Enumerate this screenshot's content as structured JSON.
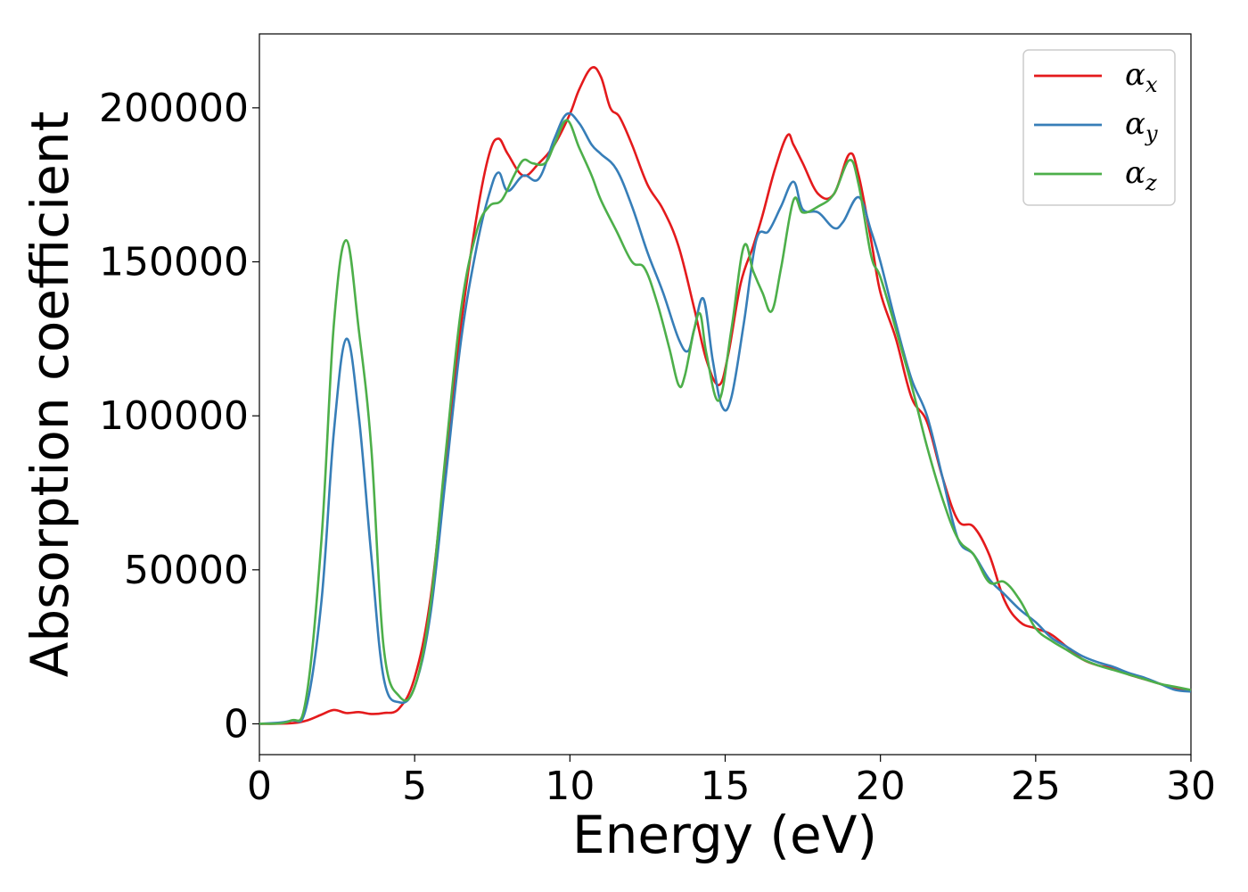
{
  "chart_data": {
    "type": "line",
    "xlabel": "Energy (eV)",
    "ylabel": "Absorption coefficient",
    "xlim": [
      0,
      30
    ],
    "ylim": [
      -10000,
      224000
    ],
    "xticks": [
      "0",
      "5",
      "10",
      "15",
      "20",
      "25",
      "30"
    ],
    "yticks": [
      "0",
      "50000",
      "100000",
      "150000",
      "200000"
    ],
    "grid": false,
    "legend_position": "top-right",
    "series": [
      {
        "name": "α",
        "subscript": "x",
        "color": "#e41a1c",
        "x": [
          0,
          1,
          1.5,
          2,
          2.4,
          2.8,
          3.2,
          3.6,
          4.0,
          4.5,
          5.0,
          5.5,
          6.0,
          6.5,
          7.0,
          7.4,
          7.7,
          8.0,
          8.5,
          9.0,
          9.5,
          10.0,
          10.3,
          10.7,
          11.0,
          11.3,
          11.6,
          12.0,
          12.5,
          13.0,
          13.5,
          14.0,
          14.4,
          14.8,
          15.1,
          15.5,
          15.9,
          16.2,
          16.6,
          17.0,
          17.2,
          17.5,
          18.0,
          18.5,
          19.0,
          19.3,
          19.7,
          20.0,
          20.5,
          21.0,
          21.5,
          22.0,
          22.5,
          23.0,
          23.5,
          24.0,
          24.5,
          25.0,
          25.5,
          26.0,
          26.5,
          27.0,
          27.5,
          28.0,
          28.5,
          29.0,
          29.5,
          30.0
        ],
        "y": [
          0,
          200,
          1000,
          3000,
          4500,
          3500,
          3800,
          3200,
          3500,
          5000,
          15000,
          40000,
          85000,
          130000,
          165000,
          185000,
          190000,
          185000,
          178000,
          182000,
          188000,
          198000,
          206000,
          213000,
          210000,
          200000,
          197000,
          188000,
          175000,
          167000,
          155000,
          135000,
          118000,
          110000,
          120000,
          143000,
          155000,
          165000,
          180000,
          191000,
          188000,
          182000,
          172000,
          172000,
          185000,
          178000,
          157000,
          140000,
          125000,
          106000,
          98000,
          80000,
          66000,
          64000,
          55000,
          40000,
          33000,
          31000,
          29000,
          25000,
          21000,
          19000,
          18000,
          16000,
          14500,
          13000,
          11500,
          11000
        ]
      },
      {
        "name": "α",
        "subscript": "y",
        "color": "#377eb8",
        "x": [
          0,
          1,
          1.5,
          2,
          2.4,
          2.8,
          3.2,
          3.6,
          4.0,
          4.5,
          5.0,
          5.5,
          6.0,
          6.5,
          7.0,
          7.4,
          7.7,
          8.0,
          8.5,
          9.0,
          9.5,
          9.9,
          10.3,
          10.7,
          11.0,
          11.5,
          12.0,
          12.5,
          13.0,
          13.5,
          13.8,
          14.0,
          14.3,
          14.6,
          14.9,
          15.2,
          15.6,
          16.0,
          16.4,
          16.8,
          17.2,
          17.5,
          18.0,
          18.5,
          18.8,
          19.3,
          19.7,
          20.0,
          20.5,
          21.0,
          21.5,
          22.0,
          22.5,
          23.0,
          23.5,
          24.0,
          24.5,
          25.0,
          25.5,
          26.0,
          26.5,
          27.0,
          27.5,
          28.0,
          28.5,
          29.0,
          29.5,
          30.0
        ],
        "y": [
          0,
          1000,
          5000,
          40000,
          95000,
          125000,
          100000,
          55000,
          15000,
          7000,
          12000,
          35000,
          80000,
          125000,
          155000,
          172000,
          179000,
          173000,
          178000,
          177000,
          190000,
          198000,
          195000,
          188000,
          185000,
          180000,
          168000,
          153000,
          140000,
          125000,
          121000,
          128000,
          138000,
          118000,
          103000,
          106000,
          130000,
          157000,
          160000,
          168000,
          176000,
          167000,
          166000,
          161000,
          163000,
          171000,
          160000,
          150000,
          130000,
          112000,
          100000,
          80000,
          60000,
          55000,
          47000,
          42000,
          37000,
          33000,
          28000,
          25000,
          22000,
          20000,
          18500,
          16500,
          15000,
          13000,
          11000,
          10500
        ]
      },
      {
        "name": "α",
        "subscript": "z",
        "color": "#4daf4a",
        "x": [
          0,
          1,
          1.5,
          2,
          2.4,
          2.8,
          3.2,
          3.6,
          4.0,
          4.5,
          5.0,
          5.5,
          6.0,
          6.5,
          7.0,
          7.4,
          7.8,
          8.2,
          8.5,
          8.8,
          9.2,
          9.5,
          9.9,
          10.3,
          10.7,
          11.0,
          11.5,
          12.0,
          12.4,
          12.8,
          13.2,
          13.5,
          13.7,
          14.0,
          14.2,
          14.4,
          14.8,
          15.2,
          15.6,
          15.9,
          16.2,
          16.5,
          16.8,
          17.2,
          17.5,
          18.0,
          18.5,
          19.0,
          19.3,
          19.7,
          20.0,
          20.5,
          21.0,
          21.5,
          22.0,
          22.5,
          23.0,
          23.5,
          24.0,
          24.5,
          25.0,
          25.5,
          26.0,
          26.5,
          27.0,
          27.5,
          28.0,
          28.5,
          29.0,
          29.5,
          30.0
        ],
        "y": [
          0,
          1000,
          8000,
          60000,
          130000,
          157000,
          128000,
          90000,
          25000,
          9000,
          12000,
          38000,
          88000,
          135000,
          160000,
          168000,
          170000,
          178000,
          183000,
          182000,
          182000,
          188000,
          196000,
          187000,
          178000,
          170000,
          160000,
          150000,
          148000,
          137000,
          122000,
          110000,
          113000,
          128000,
          133000,
          120000,
          105000,
          128000,
          155000,
          147000,
          140000,
          134000,
          148000,
          170000,
          166000,
          168000,
          172000,
          183000,
          175000,
          152000,
          145000,
          128000,
          110000,
          90000,
          73000,
          60000,
          55000,
          46000,
          46000,
          40000,
          31000,
          27000,
          24000,
          21000,
          19000,
          17500,
          16000,
          14500,
          13000,
          12000,
          11000
        ]
      }
    ]
  }
}
